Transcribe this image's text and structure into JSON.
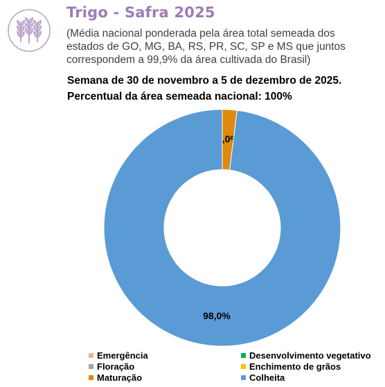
{
  "header": {
    "title": "Trigo - Safra 2025",
    "subtitle": "(Média nacional ponderada pela área total semeada dos estados de GO, MG, BA, RS, PR, SC, SP e MS que juntos correspondem a 99,9% da área cultivada do Brasil)",
    "week": "Semana de 30 de novembro a 5 de dezembro de 2025.",
    "area_share": "Percentual da área semeada nacional: 100%"
  },
  "logo": {
    "icon": "wheat-icon",
    "color": "#b9a3cc"
  },
  "chart_data": {
    "type": "pie",
    "variant": "donut",
    "categories": [
      "Emergência",
      "Desenvolvimento vegetativo",
      "Floração",
      "Enchimento de grãos",
      "Maturação",
      "Colheita"
    ],
    "values": [
      0,
      0,
      0,
      0,
      2.0,
      98.0
    ],
    "labels": [
      "",
      "",
      "",
      "",
      "2,0%",
      "98,0%"
    ],
    "colors": [
      "#f4b183",
      "#00b050",
      "#a5a5a5",
      "#ffc000",
      "#de8a0c",
      "#5b9bd5"
    ],
    "legend_position": "bottom"
  }
}
